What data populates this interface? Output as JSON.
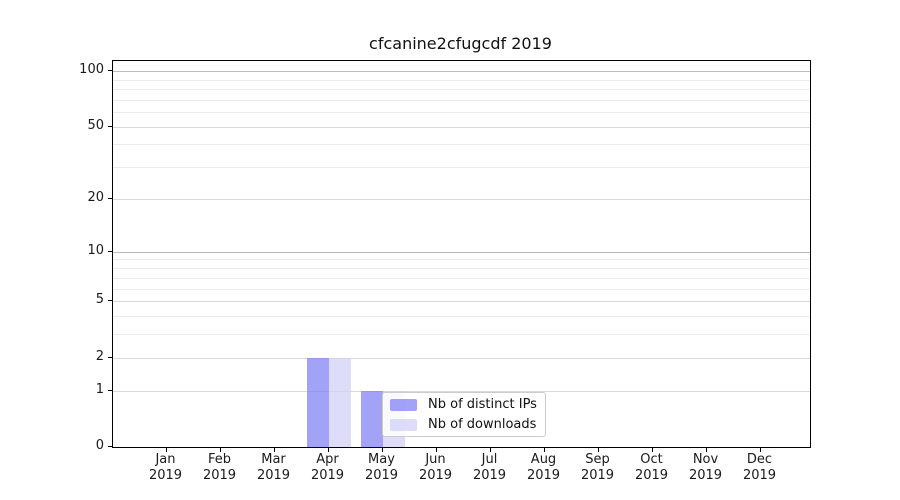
{
  "figure": {
    "title": "cfcanine2cfugcdf 2019"
  },
  "chart_data": {
    "type": "bar",
    "title": "cfcanine2cfugcdf 2019",
    "x": {
      "categories": [
        "Jan",
        "Feb",
        "Mar",
        "Apr",
        "May",
        "Jun",
        "Jul",
        "Aug",
        "Sep",
        "Oct",
        "Nov",
        "Dec"
      ],
      "year": "2019"
    },
    "series": [
      {
        "name": "Nb of distinct IPs",
        "color": "#7b7bf2",
        "fill_alpha": 0.7,
        "values": [
          0,
          0,
          0,
          2,
          1,
          0,
          0,
          0,
          0,
          0,
          0,
          0
        ]
      },
      {
        "name": "Nb of downloads",
        "color": "#cecef8",
        "fill_alpha": 0.7,
        "values": [
          0,
          0,
          0,
          2,
          1,
          0,
          0,
          0,
          0,
          0,
          0,
          0
        ]
      }
    ],
    "yaxis": {
      "scale": "log1p",
      "ticks": [
        0,
        1,
        2,
        5,
        10,
        20,
        50,
        100
      ],
      "minor_gridlines": [
        3,
        4,
        6,
        7,
        8,
        9,
        30,
        40,
        60,
        70,
        80,
        90
      ],
      "ylim": [
        0,
        113
      ],
      "decade_ticks": [
        10,
        100
      ]
    },
    "legend": {
      "entries": [
        "Nb of distinct IPs",
        "Nb of downloads"
      ],
      "position": "lower-center"
    },
    "grid": true,
    "colors": {
      "major_gridline": "#bcbcbc",
      "labeled_gridline": "#d9d9d9",
      "minor_gridline": "#ececec",
      "spine": "#000000"
    }
  }
}
